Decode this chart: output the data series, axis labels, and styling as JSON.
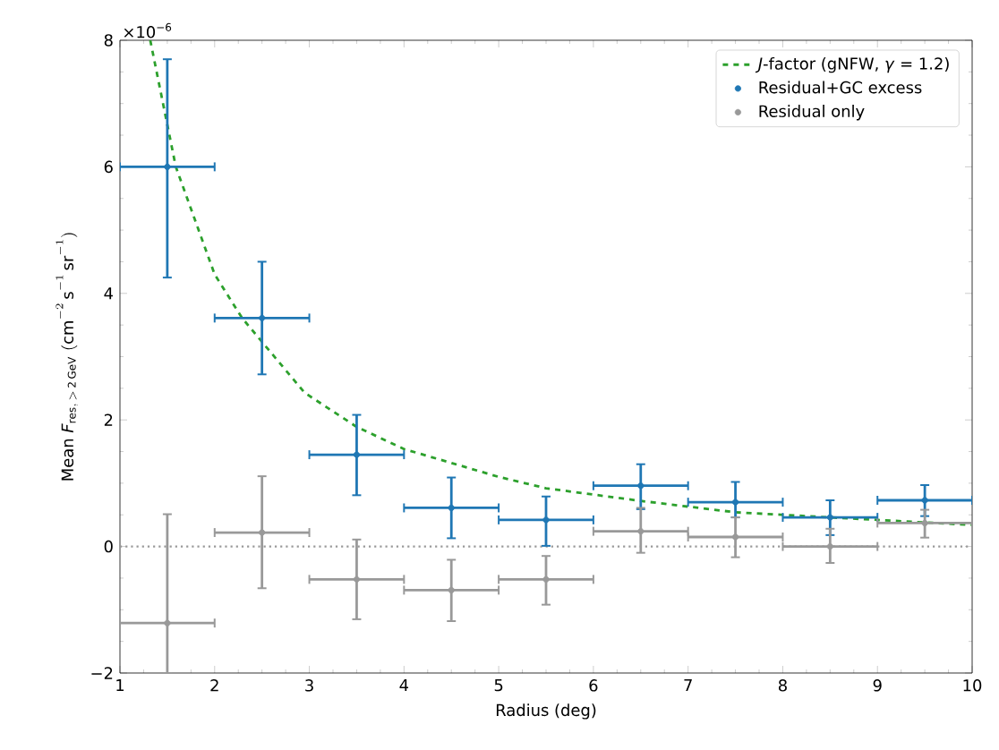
{
  "chart_data": {
    "type": "scatter",
    "xlabel": "Radius (deg)",
    "ylabel": "\\mathrm{Mean}\\ \\mathit{F}_{\\mathrm{res,\\,>\\,2\\,GeV}}\\ (\\mathrm{cm}^{-2}\\,\\mathrm{s}^{-1}\\,\\mathrm{sr}^{-1})",
    "annotations": [
      "×10$^{−6}$"
    ],
    "xlim": [
      1,
      10
    ],
    "xticks": [
      1,
      2,
      3,
      4,
      5,
      6,
      7,
      8,
      9,
      10
    ],
    "ylim": [
      -2,
      8
    ],
    "yticks": [
      {
        "value": -2,
        "label": "−2"
      },
      0,
      2,
      4,
      6,
      8
    ],
    "legend": "top right",
    "marker": "circle",
    "ref_lines": [
      {
        "axis": "y",
        "value": 0,
        "color": "#999999",
        "line_style": "dotted"
      }
    ],
    "series": [
      {
        "name": "*J*-factor (gNFW, *γ* = 1.2)",
        "type": "line",
        "color": "#2ca02c",
        "line_style": "dashed",
        "marker": "none",
        "x": [
          1.32,
          1.59,
          2.0,
          2.29,
          2.95,
          3.5,
          4.0,
          5.0,
          5.5,
          6.5,
          7.5,
          8.5,
          9.5,
          10.0
        ],
        "values": [
          8.0,
          6.0,
          4.3,
          3.61,
          2.43,
          1.89,
          1.54,
          1.1,
          0.92,
          0.72,
          0.54,
          0.46,
          0.38,
          0.34
        ]
      },
      {
        "name": "Residual+GC excess",
        "color": "#1f77b4",
        "x": [
          1.5,
          2.5,
          3.5,
          4.5,
          5.5,
          6.5,
          7.5,
          8.5,
          9.5
        ],
        "values": [
          6.0,
          3.61,
          1.45,
          0.61,
          0.42,
          0.96,
          0.7,
          0.46,
          0.73
        ],
        "errors": [
          [
            4.25,
            7.7
          ],
          [
            2.72,
            4.5
          ],
          [
            0.81,
            2.08
          ],
          [
            0.13,
            1.09
          ],
          [
            0.01,
            0.79
          ],
          [
            0.59,
            1.3
          ],
          [
            0.46,
            1.02
          ],
          [
            0.18,
            0.73
          ],
          [
            0.48,
            0.97
          ]
        ],
        "xerrors": [
          0.5,
          0.5,
          0.5,
          0.5,
          0.5,
          0.5,
          0.5,
          0.5,
          0.5
        ]
      },
      {
        "name": "Residual only",
        "color": "#999999",
        "x": [
          1.5,
          2.5,
          3.5,
          4.5,
          5.5,
          6.5,
          7.5,
          8.5,
          9.5
        ],
        "values": [
          -1.21,
          0.22,
          -0.52,
          -0.69,
          -0.52,
          0.24,
          0.15,
          0.0,
          0.37
        ],
        "errors": [
          [
            -2,
            0.51
          ],
          [
            -0.66,
            1.11
          ],
          [
            -1.15,
            0.11
          ],
          [
            -1.18,
            -0.21
          ],
          [
            -0.92,
            -0.15
          ],
          [
            -0.1,
            0.61
          ],
          [
            -0.17,
            0.46
          ],
          [
            -0.26,
            0.28
          ],
          [
            0.14,
            0.58
          ]
        ],
        "xerrors": [
          0.5,
          0.5,
          0.5,
          0.5,
          0.5,
          0.5,
          0.5,
          0.5,
          0.5
        ]
      }
    ]
  }
}
